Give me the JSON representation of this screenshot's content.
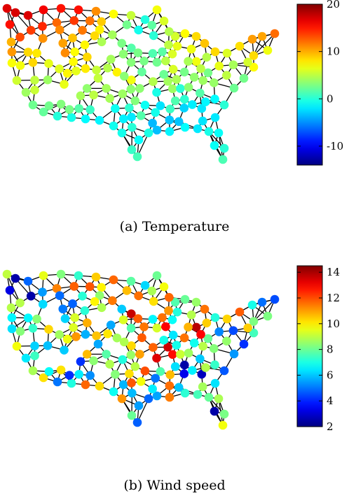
{
  "figure": {
    "panels": [
      {
        "caption": "(a) Temperature",
        "colorbar": {
          "min": -14,
          "max": 20,
          "ticks": [
            "20",
            "10",
            "0",
            "-10"
          ],
          "tick_values": [
            20,
            10,
            0,
            -10
          ]
        },
        "edge_color": "#000000"
      },
      {
        "caption": "(b) Wind speed",
        "colorbar": {
          "min": 2,
          "max": 14.5,
          "ticks": [
            "14",
            "12",
            "10",
            "8",
            "6",
            "4",
            "2"
          ],
          "tick_values": [
            14,
            12,
            10,
            8,
            6,
            4,
            2
          ]
        },
        "edge_color": "#000000"
      }
    ],
    "colormap": "jet"
  }
}
